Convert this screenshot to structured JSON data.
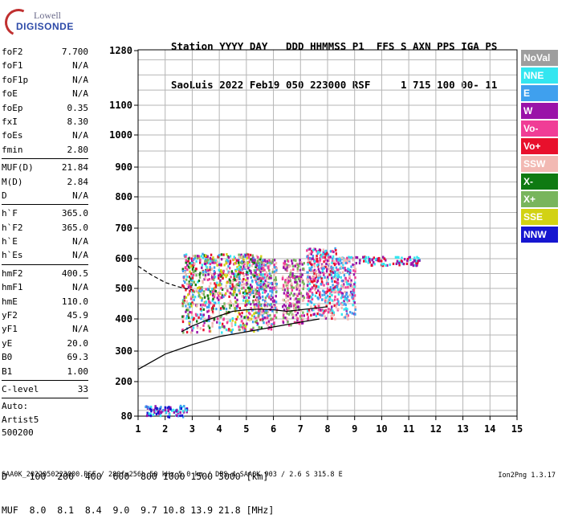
{
  "logo": {
    "brand": "Lowell",
    "product": "DIGISONDE"
  },
  "header": {
    "line1": "Station YYYY DAY   DDD HHMMSS P1  FFS S AXN PPS IGA PS",
    "line2": "SaoLuis 2022 Feb19 050 223000 RSF     1 715 100 00- 11"
  },
  "params": {
    "group1": [
      {
        "k": "foF2",
        "v": "7.700"
      },
      {
        "k": "foF1",
        "v": "N/A"
      },
      {
        "k": "foF1p",
        "v": "N/A"
      },
      {
        "k": "foE",
        "v": "N/A"
      },
      {
        "k": "foEp",
        "v": "0.35"
      },
      {
        "k": "fxI",
        "v": "8.30"
      },
      {
        "k": "foEs",
        "v": "N/A"
      },
      {
        "k": "fmin",
        "v": "2.80"
      }
    ],
    "group2": [
      {
        "k": "MUF(D)",
        "v": "21.84"
      },
      {
        "k": "M(D)",
        "v": "2.84"
      },
      {
        "k": "D",
        "v": "N/A"
      }
    ],
    "group3": [
      {
        "k": "h`F",
        "v": "365.0"
      },
      {
        "k": "h`F2",
        "v": "365.0"
      },
      {
        "k": "h`E",
        "v": "N/A"
      },
      {
        "k": "h`Es",
        "v": "N/A"
      }
    ],
    "group4": [
      {
        "k": "hmF2",
        "v": "400.5"
      },
      {
        "k": "hmF1",
        "v": "N/A"
      },
      {
        "k": "hmE",
        "v": "110.0"
      },
      {
        "k": "yF2",
        "v": "45.9"
      },
      {
        "k": "yF1",
        "v": "N/A"
      },
      {
        "k": "yE",
        "v": "20.0"
      },
      {
        "k": "B0",
        "v": "69.3"
      },
      {
        "k": "B1",
        "v": "1.00"
      }
    ],
    "group5": [
      {
        "k": "C-level",
        "v": "33"
      }
    ],
    "auto": [
      "Auto:",
      "Artist5",
      "500200"
    ]
  },
  "legend": [
    {
      "label": "NoVal",
      "color": "#9e9e9e"
    },
    {
      "label": "NNE",
      "color": "#33e6f0"
    },
    {
      "label": "E",
      "color": "#3fa0ee"
    },
    {
      "label": "W",
      "color": "#9a12a8"
    },
    {
      "label": "Vo-",
      "color": "#f03d96"
    },
    {
      "label": "Vo+",
      "color": "#e8102c"
    },
    {
      "label": "SSW",
      "color": "#f2b9b3"
    },
    {
      "label": "X-",
      "color": "#0f7a12"
    },
    {
      "label": "X+",
      "color": "#78b55c"
    },
    {
      "label": "SSE",
      "color": "#d2d213"
    },
    {
      "label": "NNW",
      "color": "#1616d0"
    }
  ],
  "chart_data": {
    "type": "scatter",
    "xlabel": "",
    "ylabel": "",
    "xlim": [
      1,
      15
    ],
    "x_ticks": [
      "1",
      "2",
      "3",
      "4",
      "5",
      "6",
      "7",
      "8",
      "9",
      "10",
      "11",
      "12",
      "13",
      "14",
      "15"
    ],
    "ylim": [
      80,
      1280
    ],
    "y_ticks": [
      "80",
      "200",
      "300",
      "400",
      "500",
      "600",
      "700",
      "800",
      "900",
      "1000",
      "1100",
      "1280"
    ],
    "y_scale": "nonlinear (sqrt-like)",
    "grid": true,
    "legend_position": "right",
    "series": [
      {
        "name": "profile",
        "style": "solid",
        "points": [
          [
            1,
            240
          ],
          [
            1.5,
            265
          ],
          [
            2,
            290
          ],
          [
            3,
            320
          ],
          [
            4,
            345
          ],
          [
            5,
            360
          ],
          [
            6,
            375
          ],
          [
            7,
            390
          ],
          [
            7.7,
            400
          ]
        ]
      },
      {
        "name": "trace",
        "style": "solid",
        "points": [
          [
            2.6,
            360
          ],
          [
            3,
            378
          ],
          [
            3.5,
            395
          ],
          [
            4,
            410
          ],
          [
            4.5,
            425
          ],
          [
            5,
            430
          ],
          [
            5.5,
            432
          ],
          [
            6,
            430
          ],
          [
            6.5,
            425
          ],
          [
            7,
            430
          ],
          [
            7.5,
            435
          ],
          [
            8,
            440
          ]
        ]
      },
      {
        "name": "dashed",
        "style": "dashed",
        "points": [
          [
            1,
            575
          ],
          [
            1.5,
            545
          ],
          [
            2,
            520
          ],
          [
            2.5,
            505
          ],
          [
            3,
            495
          ]
        ]
      }
    ],
    "echo_clusters": [
      {
        "x": [
          2.6,
          5.6
        ],
        "y": [
          360,
          620
        ],
        "colors": [
          "W",
          "Vo-",
          "Vo+",
          "X-",
          "X+",
          "SSE",
          "NNE",
          "E",
          "SSW"
        ]
      },
      {
        "x": [
          5.3,
          6.1
        ],
        "y": [
          370,
          600
        ],
        "colors": [
          "W",
          "Vo-",
          "X+",
          "SSW",
          "E"
        ]
      },
      {
        "x": [
          6.3,
          7.1
        ],
        "y": [
          380,
          600
        ],
        "colors": [
          "W",
          "Vo-",
          "SSW",
          "X+"
        ]
      },
      {
        "x": [
          7.2,
          8.3
        ],
        "y": [
          400,
          640
        ],
        "colors": [
          "NNE",
          "E",
          "W",
          "Vo-",
          "Vo+",
          "SSW"
        ]
      },
      {
        "x": [
          8.3,
          9.0
        ],
        "y": [
          400,
          610
        ],
        "colors": [
          "NNE",
          "E",
          "W",
          "Vo-",
          "SSW"
        ]
      },
      {
        "x": [
          9.0,
          11.4
        ],
        "y": [
          580,
          610
        ],
        "colors": [
          "W",
          "Vo+",
          "NNE"
        ]
      },
      {
        "x": [
          1.2,
          2.8
        ],
        "y": [
          80,
          120
        ],
        "colors": [
          "NNW",
          "NNE",
          "E",
          "W"
        ]
      }
    ]
  },
  "footer": {
    "line1": "D    100  200  400  600  800 1000 1500 3000 [km]",
    "line2": "MUF  8.0  8.1  8.4  9.0  9.7 10.8 13.9 21.8 [MHz]",
    "file": "SAA0K_2022050223000.RSF / 280fx256h 50 kHz 5.0 km / DPS-4 SAA0K 903 / 2.6 S 315.8 E",
    "version": "Ion2Png 1.3.17"
  }
}
